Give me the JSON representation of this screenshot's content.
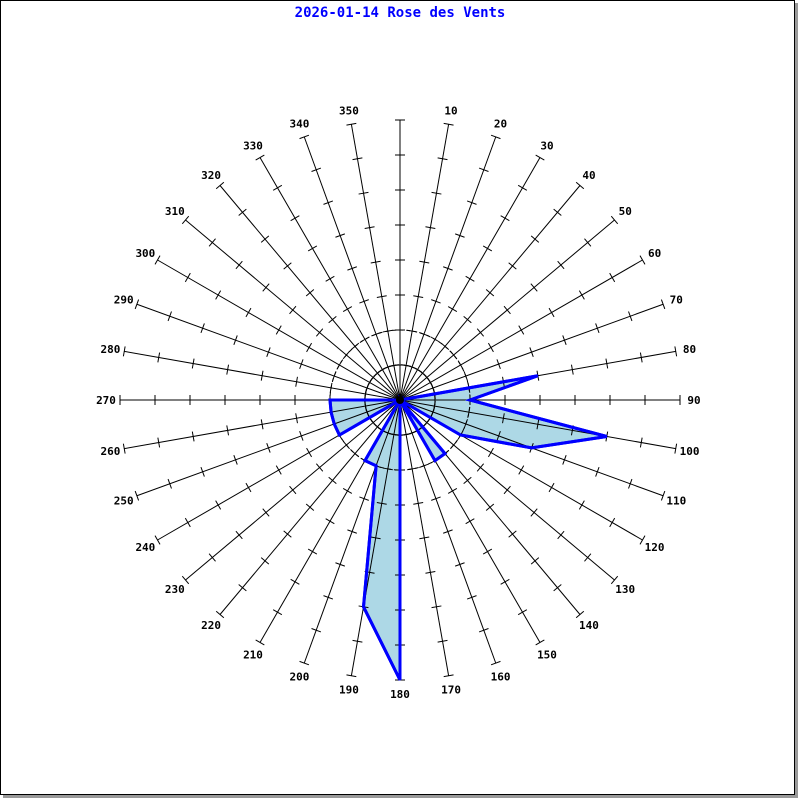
{
  "chart_data": {
    "type": "polar-area",
    "title": "2026-01-14 Rose des Vents",
    "directions": [
      0,
      10,
      20,
      30,
      40,
      50,
      60,
      70,
      80,
      90,
      100,
      110,
      120,
      130,
      140,
      150,
      160,
      170,
      180,
      190,
      200,
      210,
      220,
      230,
      240,
      250,
      260,
      270,
      280,
      290,
      300,
      310,
      320,
      330,
      340,
      350
    ],
    "direction_labels": [
      "",
      "10",
      "20",
      "30",
      "40",
      "50",
      "60",
      "70",
      "80",
      "90",
      "100",
      "110",
      "120",
      "130",
      "140",
      "150",
      "160",
      "170",
      "180",
      "190",
      "200",
      "210",
      "220",
      "230",
      "240",
      "250",
      "260",
      "270",
      "280",
      "290",
      "300",
      "310",
      "320",
      "330",
      "340",
      "350"
    ],
    "values": [
      0,
      0,
      0,
      0,
      0,
      0,
      0,
      0,
      4,
      2,
      6,
      4,
      2,
      0,
      2,
      2,
      0,
      0,
      8,
      6,
      2,
      2,
      0,
      0,
      2,
      2,
      2,
      2,
      0,
      0,
      0,
      0,
      0,
      0,
      0,
      0
    ],
    "rmax": 8,
    "fill_color": "#add8e6",
    "line_color": "#0000ff",
    "title_color": "#0000ff"
  }
}
